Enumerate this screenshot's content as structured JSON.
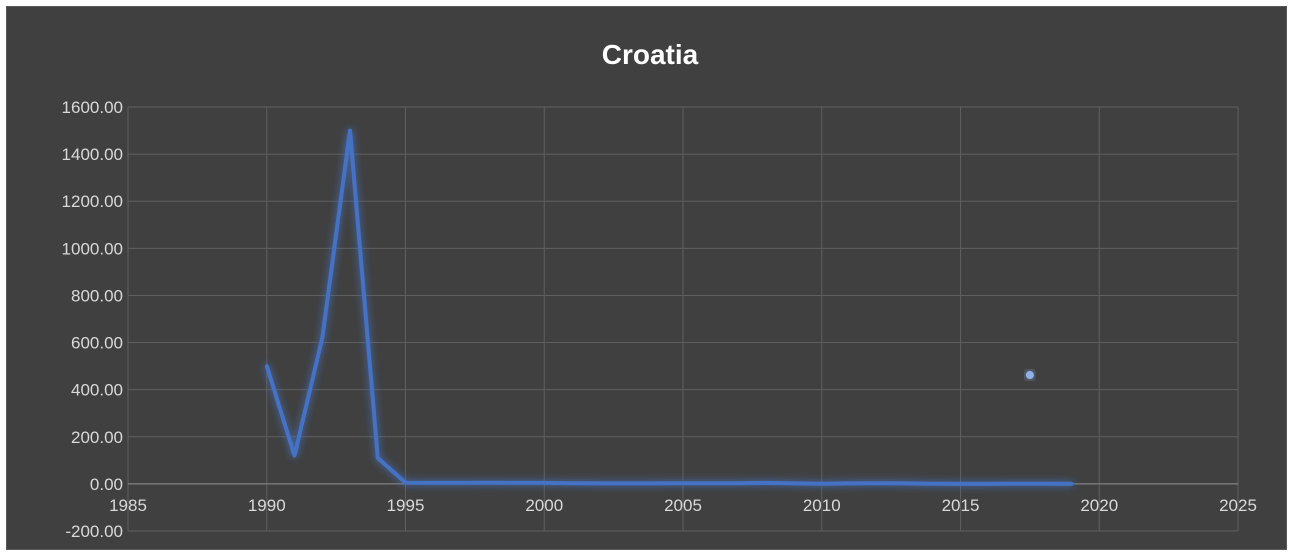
{
  "chart_data": {
    "type": "scatter",
    "title": "Croatia",
    "xlabel": "",
    "ylabel": "",
    "xlim": [
      1985,
      2025
    ],
    "ylim": [
      -200,
      1600
    ],
    "x_ticks": [
      1985,
      1990,
      1995,
      2000,
      2005,
      2010,
      2015,
      2020,
      2025
    ],
    "x_tick_labels": [
      "1985",
      "1990",
      "1995",
      "2000",
      "2005",
      "2010",
      "2015",
      "2020",
      "2025"
    ],
    "y_ticks": [
      -200,
      0,
      200,
      400,
      600,
      800,
      1000,
      1200,
      1400,
      1600
    ],
    "y_tick_labels": [
      "-200.00",
      "0.00",
      "200.00",
      "400.00",
      "600.00",
      "800.00",
      "1000.00",
      "1200.00",
      "1400.00",
      "1600.00"
    ],
    "grid": true,
    "series": [
      {
        "mode": "line",
        "color": "#4472c4",
        "x": [
          1990,
          1991,
          1992,
          1993,
          1994,
          1995,
          1996,
          1997,
          1998,
          1999,
          2000,
          2001,
          2002,
          2003,
          2004,
          2005,
          2006,
          2007,
          2008,
          2009,
          2010,
          2011,
          2012,
          2013,
          2014,
          2015,
          2016,
          2017,
          2018,
          2019
        ],
        "y": [
          500,
          120,
          620,
          1500,
          110,
          5,
          4,
          4,
          5,
          4,
          4,
          3,
          2,
          2,
          2,
          3,
          3,
          3,
          4,
          2,
          1,
          2,
          3,
          2,
          1,
          0,
          0,
          1,
          1,
          0
        ]
      },
      {
        "mode": "marker",
        "color": "#8fb0e8",
        "x": [
          2017.5
        ],
        "y": [
          462
        ]
      }
    ]
  }
}
